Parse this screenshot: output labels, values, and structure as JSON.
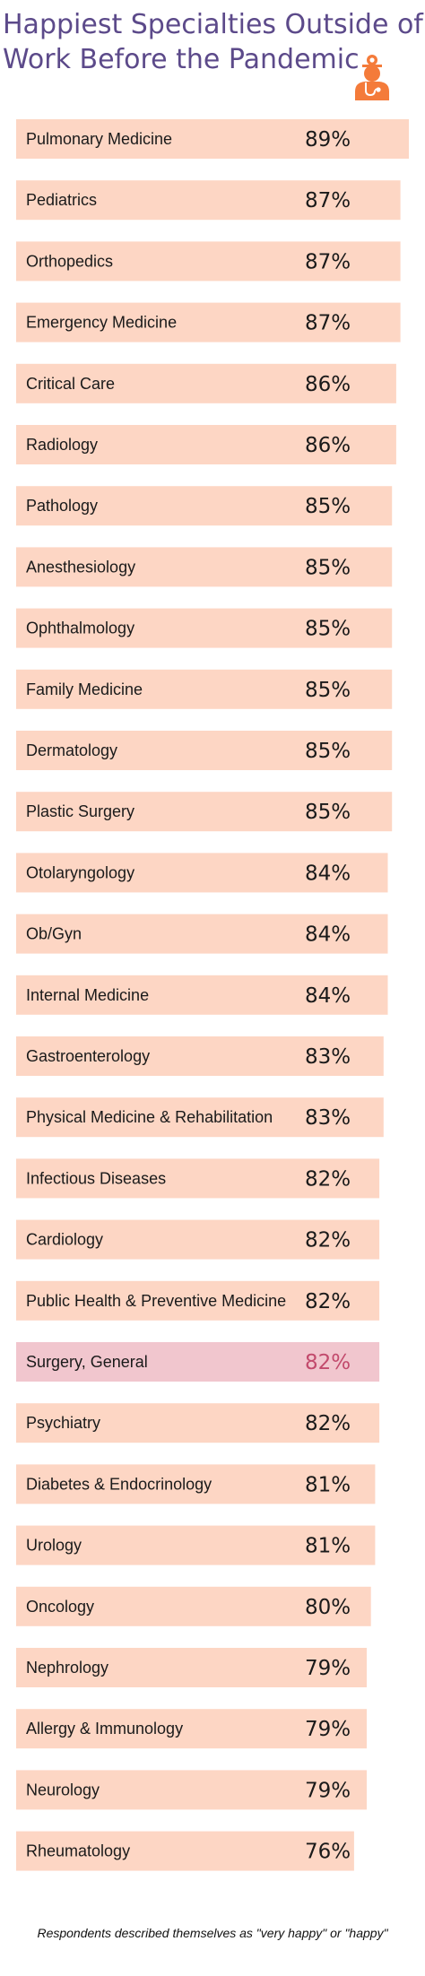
{
  "title_lines": [
    "Happiest Specialties Outside of",
    "Work Before the Pandemic"
  ],
  "footnote": "Respondents described themselves as \"very happy\" or \"happy\"",
  "logo_icon": "doctor-icon",
  "colors": {
    "title": "#5c4a8a",
    "bar": "#fdd6c4",
    "bar_highlight": "#f1c6ce",
    "value_highlight": "#c24a6c",
    "logo": "#f47b3a"
  },
  "chart_data": {
    "type": "bar",
    "orientation": "horizontal",
    "title": "Happiest Specialties Outside of Work Before the Pandemic",
    "unit": "%",
    "categories": [
      "Pulmonary Medicine",
      "Pediatrics",
      "Orthopedics",
      "Emergency Medicine",
      "Critical Care",
      "Radiology",
      "Pathology",
      "Anesthesiology",
      "Ophthalmology",
      "Family Medicine",
      "Dermatology",
      "Plastic Surgery",
      "Otolaryngology",
      "Ob/Gyn",
      "Internal Medicine",
      "Gastroenterology",
      "Physical Medicine & Rehabilitation",
      "Infectious Diseases",
      "Cardiology",
      "Public Health & Preventive Medicine",
      "Surgery, General",
      "Psychiatry",
      "Diabetes & Endocrinology",
      "Urology",
      "Oncology",
      "Nephrology",
      "Allergy & Immunology",
      "Neurology",
      "Rheumatology"
    ],
    "values": [
      89,
      87,
      87,
      87,
      86,
      86,
      85,
      85,
      85,
      85,
      85,
      85,
      84,
      84,
      84,
      83,
      83,
      82,
      82,
      82,
      82,
      82,
      81,
      81,
      80,
      79,
      79,
      79,
      76
    ],
    "value_labels": [
      "89%",
      "87%",
      "87%",
      "87%",
      "86%",
      "86%",
      "85%",
      "85%",
      "85%",
      "85%",
      "85%",
      "85%",
      "84%",
      "84%",
      "84%",
      "83%",
      "83%",
      "82%",
      "82%",
      "82%",
      "82%",
      "82%",
      "81%",
      "81%",
      "80%",
      "79%",
      "79%",
      "79%",
      "76%"
    ],
    "highlight_index": 20,
    "xlim": [
      0,
      89
    ],
    "grid": false,
    "legend": "none"
  }
}
